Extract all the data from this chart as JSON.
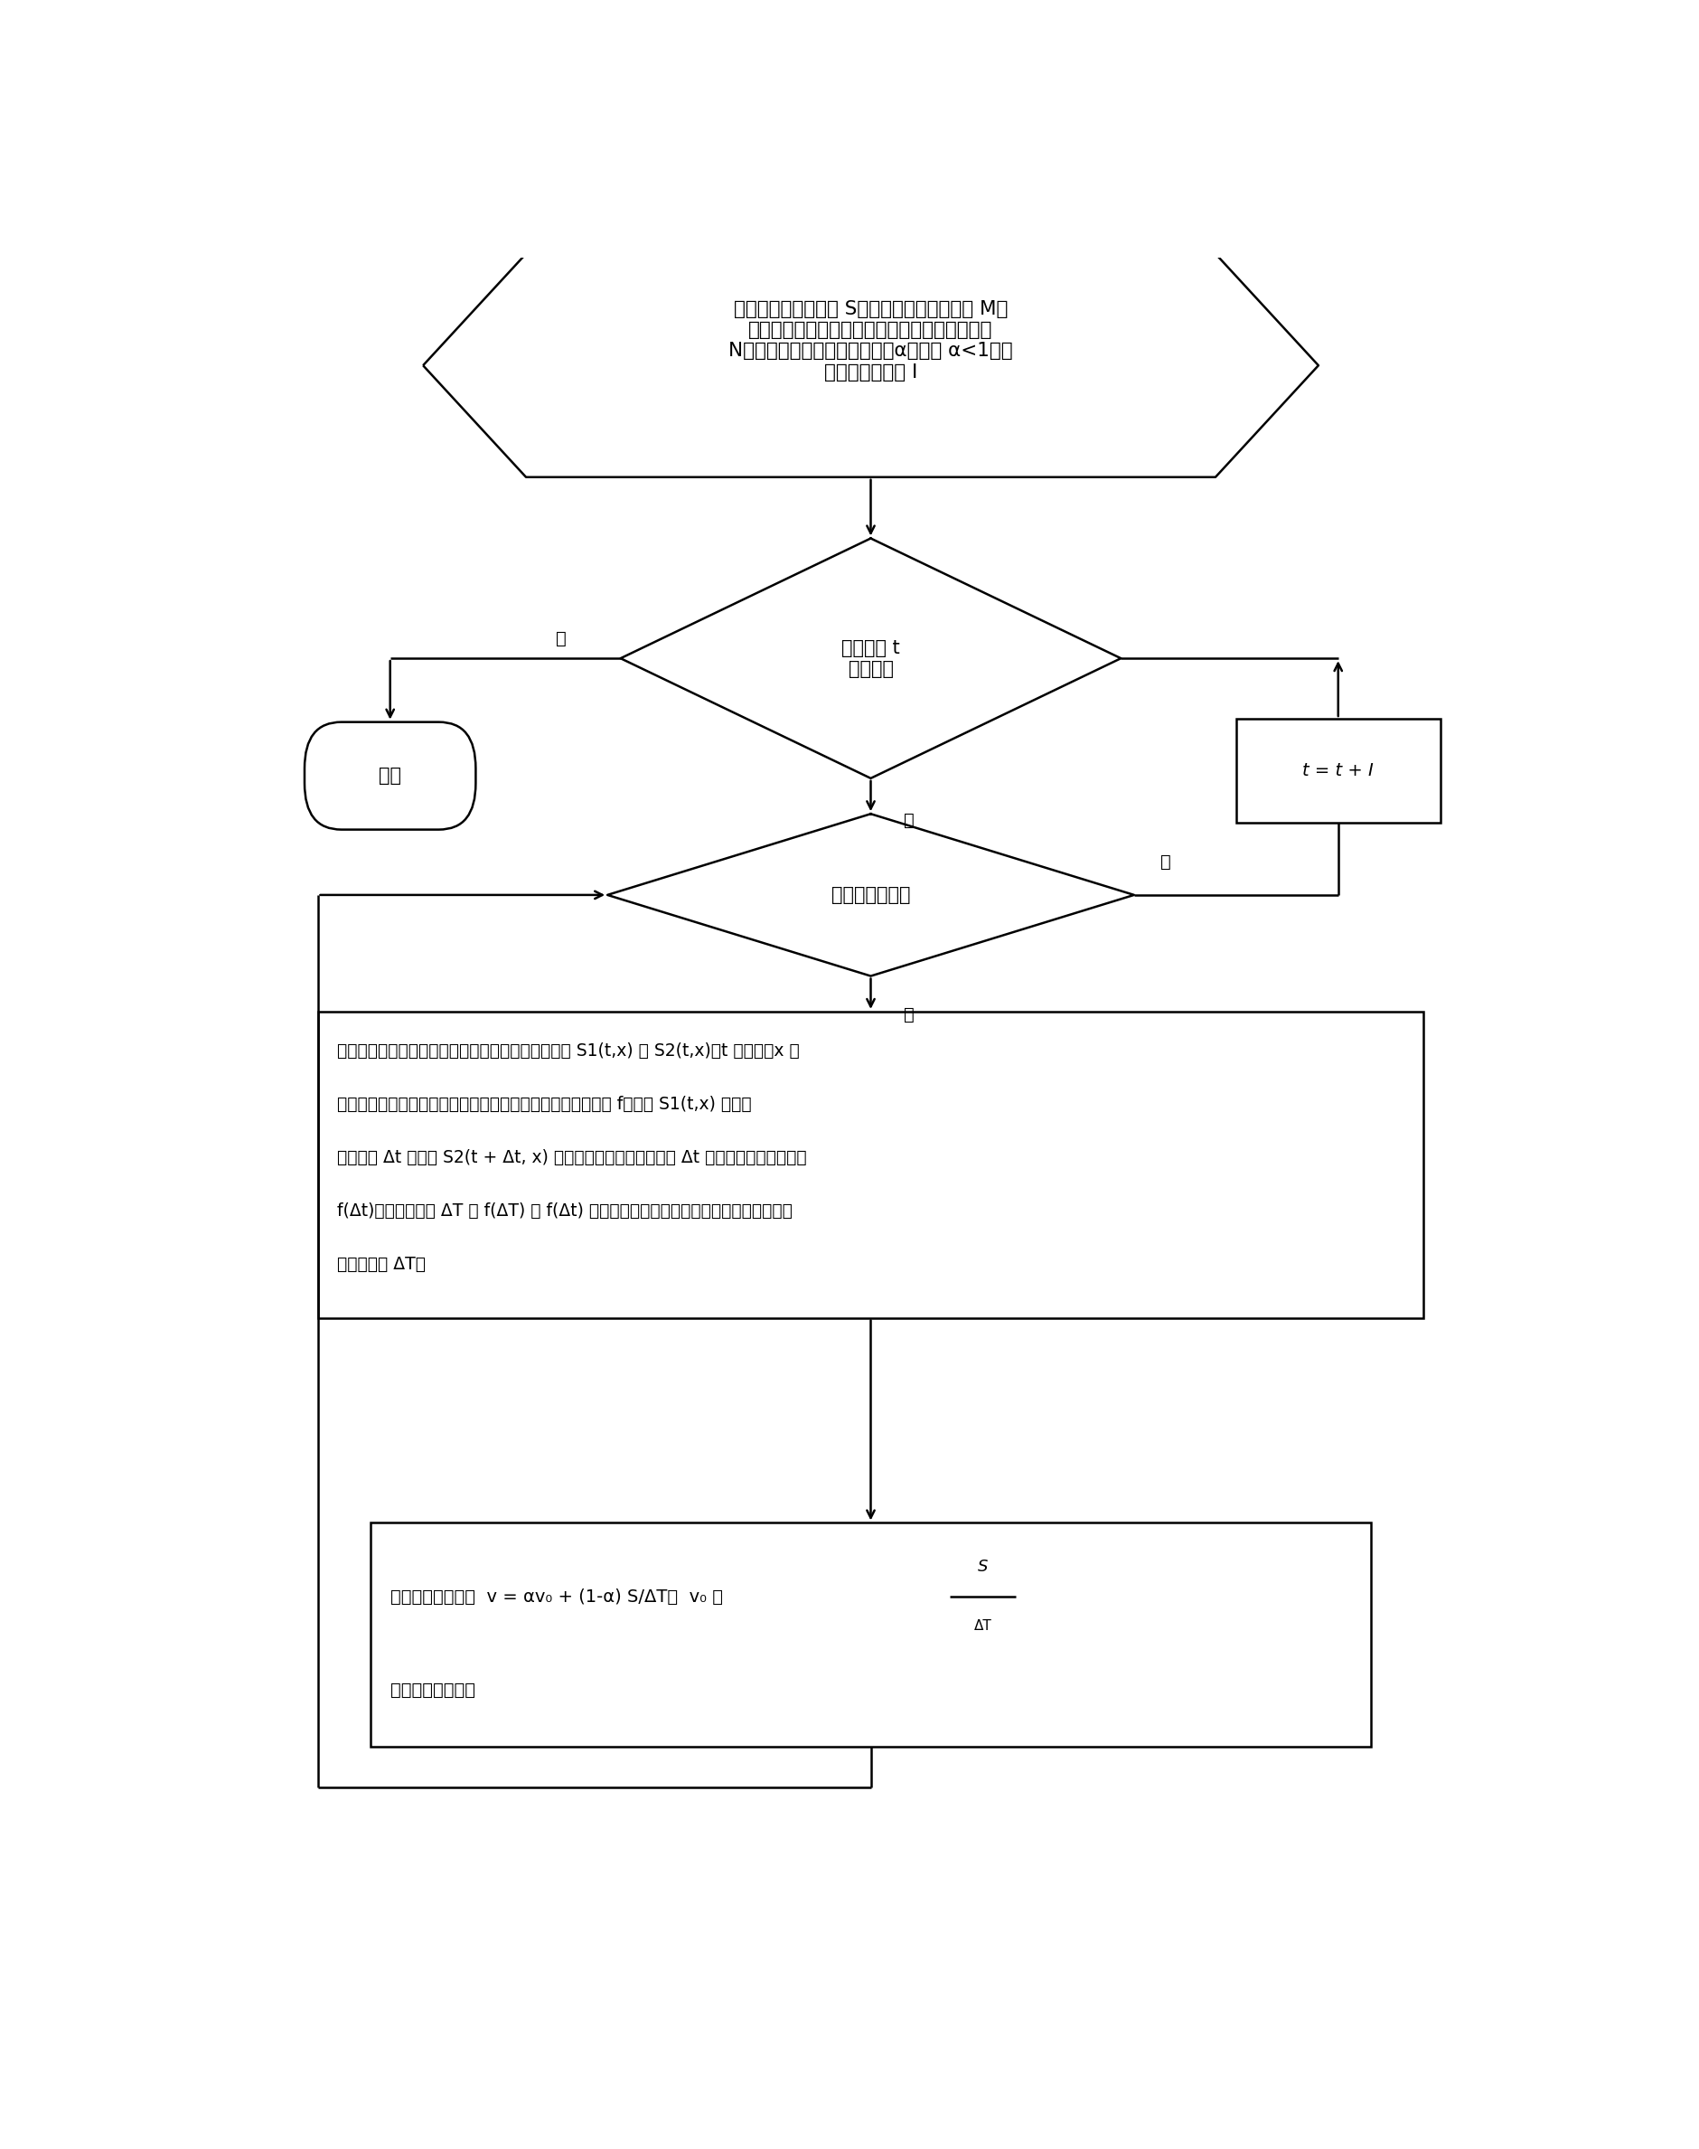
{
  "bg_color": "#ffffff",
  "line_color": "#000000",
  "text_color": "#000000",
  "hex_text": "输入相机检测点距离 S，相机的有效观测点数 M，\n两架相机采集的棉流图象，设定图象划分子图数\nN，设定非负的速度更新因子为α，满足 α<1，速\n度分析时间间隔 I",
  "d1_text": "当前时刻 t\n检测结束",
  "end_text": "结束",
  "trect_text": "t = t + I",
  "d2_text": "有子图未处理完",
  "main_text_lines": [
    "记由两架相机采集的棉流图象对应该子空间的子图为 S1(t,x) 和 S2(t,x)，t 为时间，x 为",
    "对应相机的棉流横截线的空间位置。构造一个图像相似性度量 f，计算 S1(t,x) 和对应",
    "不同时延 Δt 的图像 S2(t + Δt, x) 之间的相似性，得到一个随 Δt 变化的相似性度量曲线",
    "f(Δt)。设对应时延 ΔT 的 f(ΔT) 为 f(Δt) 曲线中的最大值，则棉流上同一点通过两架相",
    "机的时延为 ΔT。"
  ],
  "speed_line1": "当前速度估计为：  v = αv₀ + (1-α)",
  "speed_line2": "前一时刻估计速度",
  "yes_label": "是",
  "no_label": "否"
}
